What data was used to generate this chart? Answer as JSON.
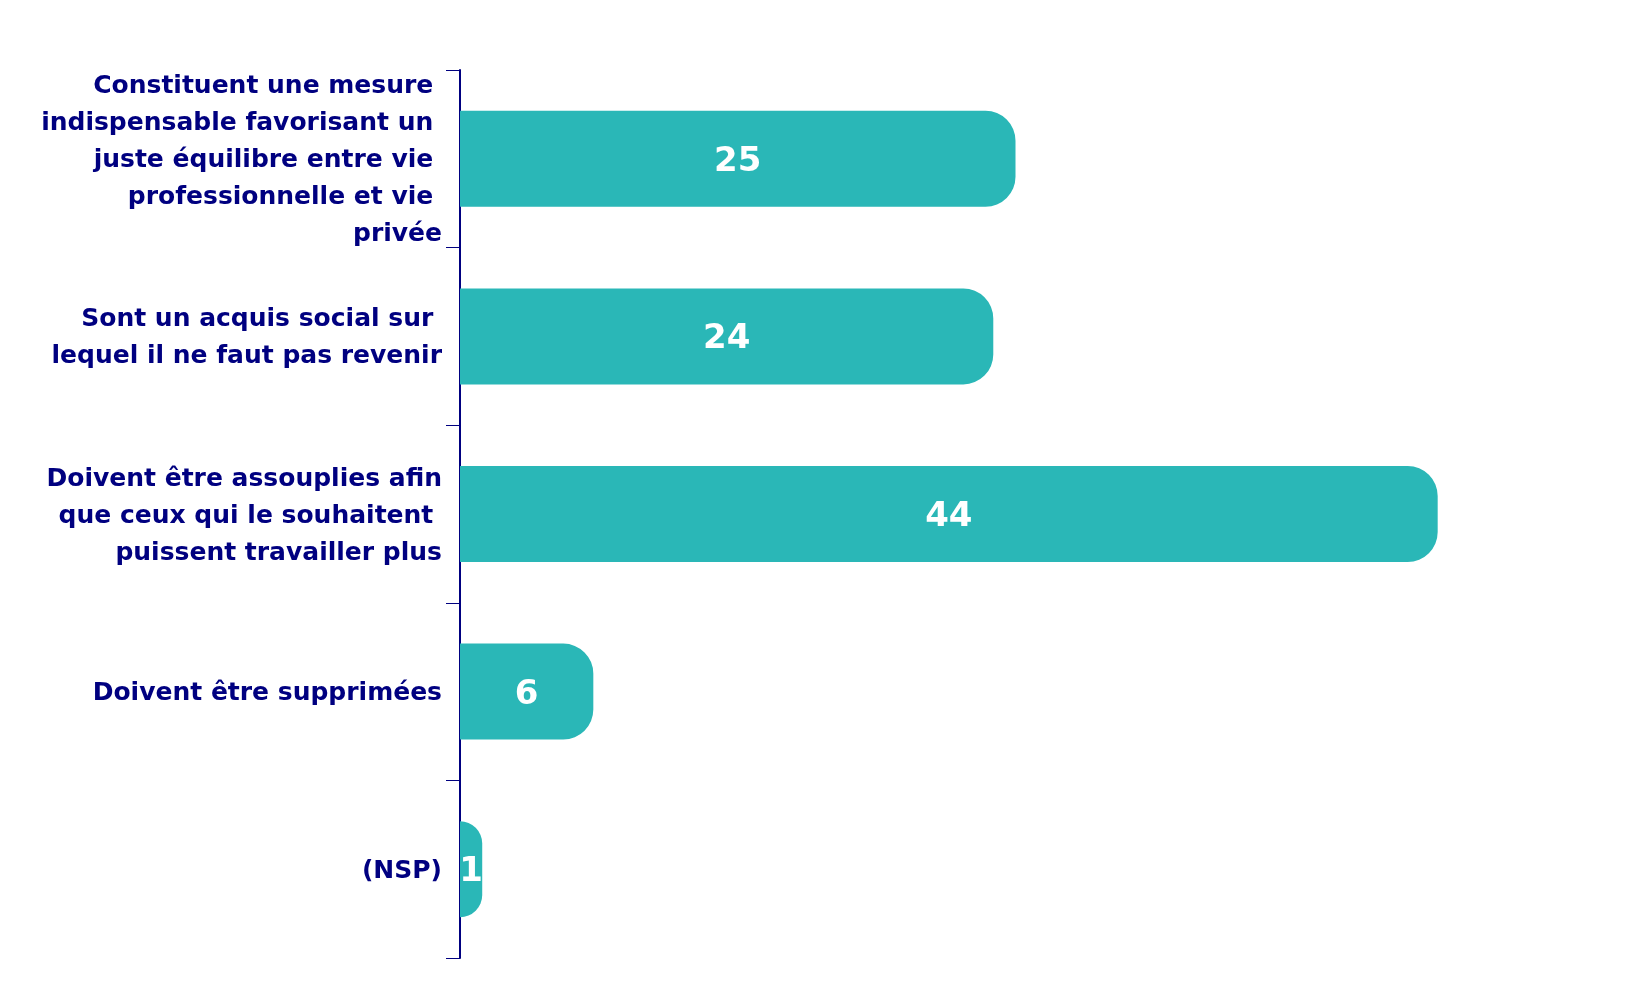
{
  "chart_data": {
    "type": "bar",
    "orientation": "horizontal",
    "categories": [
      "Constituent une mesure indispensable favorisant un juste équilibre entre vie professionnelle et vie privée",
      "Sont un acquis social sur lequel il ne faut pas revenir",
      "Doivent être assouplies afin que ceux qui le souhaitent puissent travailler plus",
      "Doivent être supprimées",
      "(NSP)"
    ],
    "series": [
      {
        "color": "#2ab7b7",
        "values": [
          25,
          24,
          44,
          6,
          1
        ]
      }
    ],
    "data_labels": true,
    "grid": false
  }
}
